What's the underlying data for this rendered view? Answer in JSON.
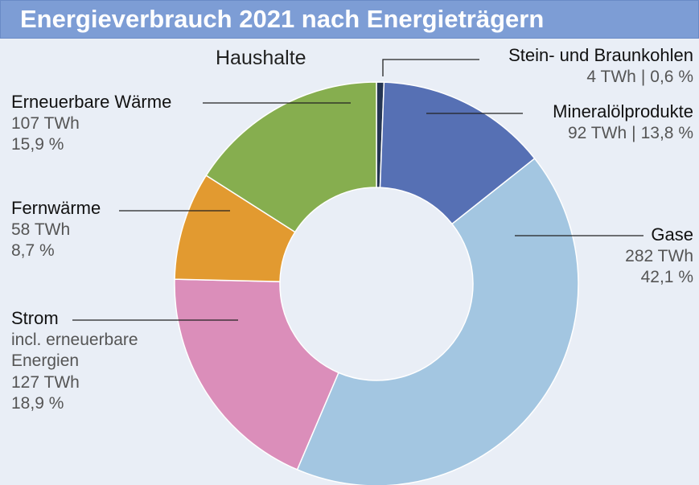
{
  "chart_data": {
    "type": "donut",
    "title": "Energieverbrauch 2021 nach Energieträgern",
    "subtitle": "Haushalte",
    "categories": [
      "Stein- und Braunkohlen",
      "Mineralölprodukte",
      "Gase",
      "Strom",
      "Fernwärme",
      "Erneuerbare Wärme"
    ],
    "category_notes": [
      null,
      null,
      null,
      "incl. erneuerbare Energien",
      null,
      null
    ],
    "values": [
      4,
      92,
      282,
      127,
      58,
      107
    ],
    "value_labels": [
      "4 TWh",
      "92 TWh",
      "282 TWh",
      "127 TWh",
      "58 TWh",
      "107 TWh"
    ],
    "percentages": [
      0.6,
      13.8,
      42.1,
      18.9,
      8.7,
      15.9
    ],
    "percentage_labels": [
      "0,6 %",
      "13,8 %",
      "42,1 %",
      "18,9 %",
      "8,7 %",
      "15,9 %"
    ],
    "label_separator": "|",
    "colors": [
      "#243552",
      "#5670b4",
      "#a3c6e1",
      "#db8eba",
      "#e29a30",
      "#86ae4f"
    ]
  }
}
